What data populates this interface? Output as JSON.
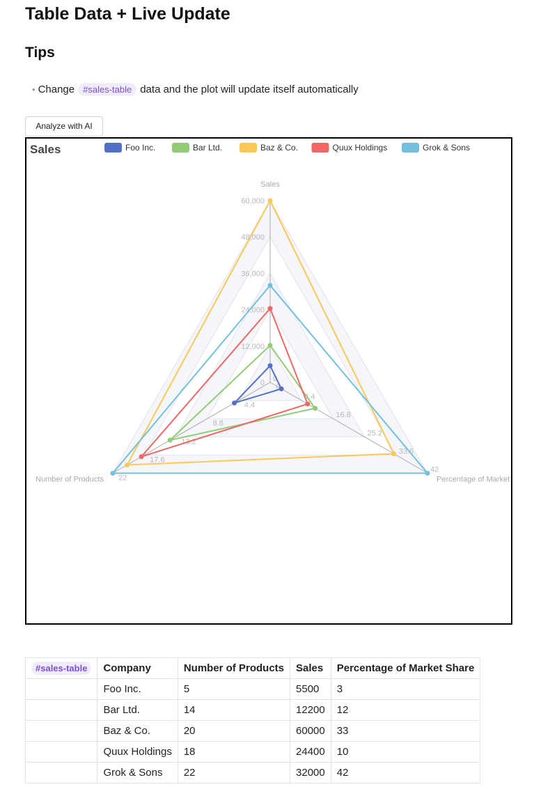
{
  "page": {
    "title": "Table Data + Live Update",
    "tips_heading": "Tips",
    "tip_prefix": "Change",
    "tip_tag": "#sales-table",
    "tip_suffix": "data and the plot will update itself automatically",
    "analyze_button": "Analyze with AI"
  },
  "chart_data": {
    "type": "radar",
    "title": "Sales",
    "legend_position": "top",
    "axes": [
      {
        "name": "Sales",
        "max": 60000,
        "ticks": [
          "0",
          "12,000",
          "24,000",
          "36,000",
          "48,000",
          "60,000"
        ]
      },
      {
        "name": "Percentage of Market Share",
        "max": 42,
        "ticks": [
          "0",
          "8.4",
          "16.8",
          "25.2",
          "33.6",
          "42"
        ]
      },
      {
        "name": "Number of Products",
        "max": 22,
        "ticks": [
          "0",
          "4.4",
          "8.8",
          "13.2",
          "17.6",
          "22"
        ]
      }
    ],
    "series": [
      {
        "name": "Foo Inc.",
        "color": "#5470c6",
        "values": [
          5500,
          3,
          5
        ]
      },
      {
        "name": "Bar Ltd.",
        "color": "#91cc75",
        "values": [
          12200,
          12,
          14
        ]
      },
      {
        "name": "Baz & Co.",
        "color": "#fac858",
        "values": [
          60000,
          33,
          20
        ]
      },
      {
        "name": "Quux Holdings",
        "color": "#ee6666",
        "values": [
          24400,
          10,
          18
        ]
      },
      {
        "name": "Grok & Sons",
        "color": "#73c0de",
        "values": [
          32000,
          42,
          22
        ]
      }
    ]
  },
  "table": {
    "tag": "#sales-table",
    "headers": [
      "Company",
      "Number of Products",
      "Sales",
      "Percentage of Market Share"
    ],
    "rows": [
      [
        "Foo Inc.",
        "5",
        "5500",
        "3"
      ],
      [
        "Bar Ltd.",
        "14",
        "12200",
        "12"
      ],
      [
        "Baz & Co.",
        "20",
        "60000",
        "33"
      ],
      [
        "Quux Holdings",
        "18",
        "24400",
        "10"
      ],
      [
        "Grok & Sons",
        "22",
        "32000",
        "42"
      ]
    ]
  }
}
